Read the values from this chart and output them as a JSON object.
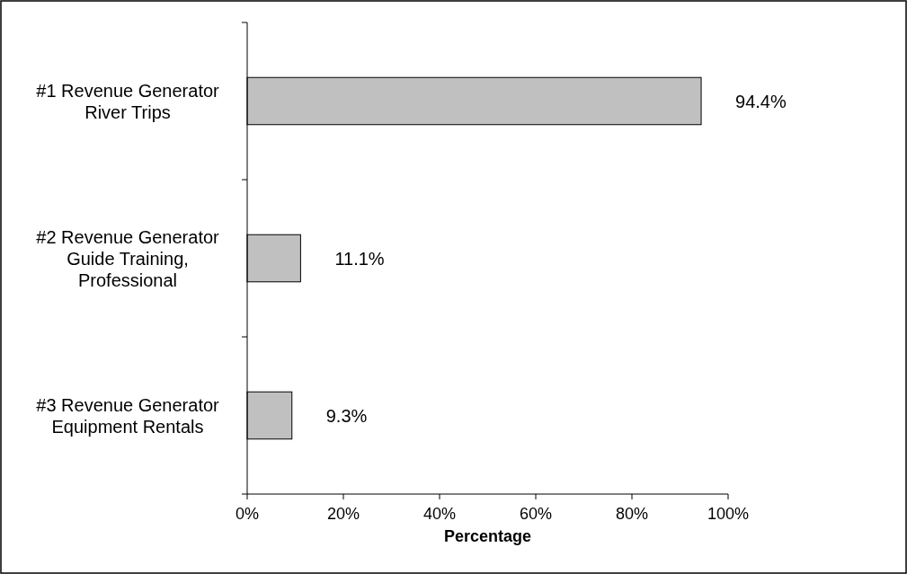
{
  "chart_data": {
    "type": "bar",
    "orientation": "horizontal",
    "xlabel": "Percentage",
    "categories": [
      "#1 Revenue Generator\nRiver Trips",
      "#2 Revenue Generator\nGuide Training,\nProfessional",
      "#3 Revenue Generator\nEquipment Rentals"
    ],
    "values": [
      94.4,
      11.1,
      9.3
    ],
    "color": "#c0c0c0",
    "value_labels": [
      "94.4%",
      "11.1%",
      "9.3%"
    ],
    "xlim": [
      0,
      100
    ],
    "xticks": [
      {
        "value": 0,
        "label": "0%"
      },
      {
        "value": 20,
        "label": "20%"
      },
      {
        "value": 40,
        "label": "40%"
      },
      {
        "value": 60,
        "label": "60%"
      },
      {
        "value": 80,
        "label": "80%"
      },
      {
        "value": 100,
        "label": "100%"
      }
    ],
    "grid": false
  }
}
